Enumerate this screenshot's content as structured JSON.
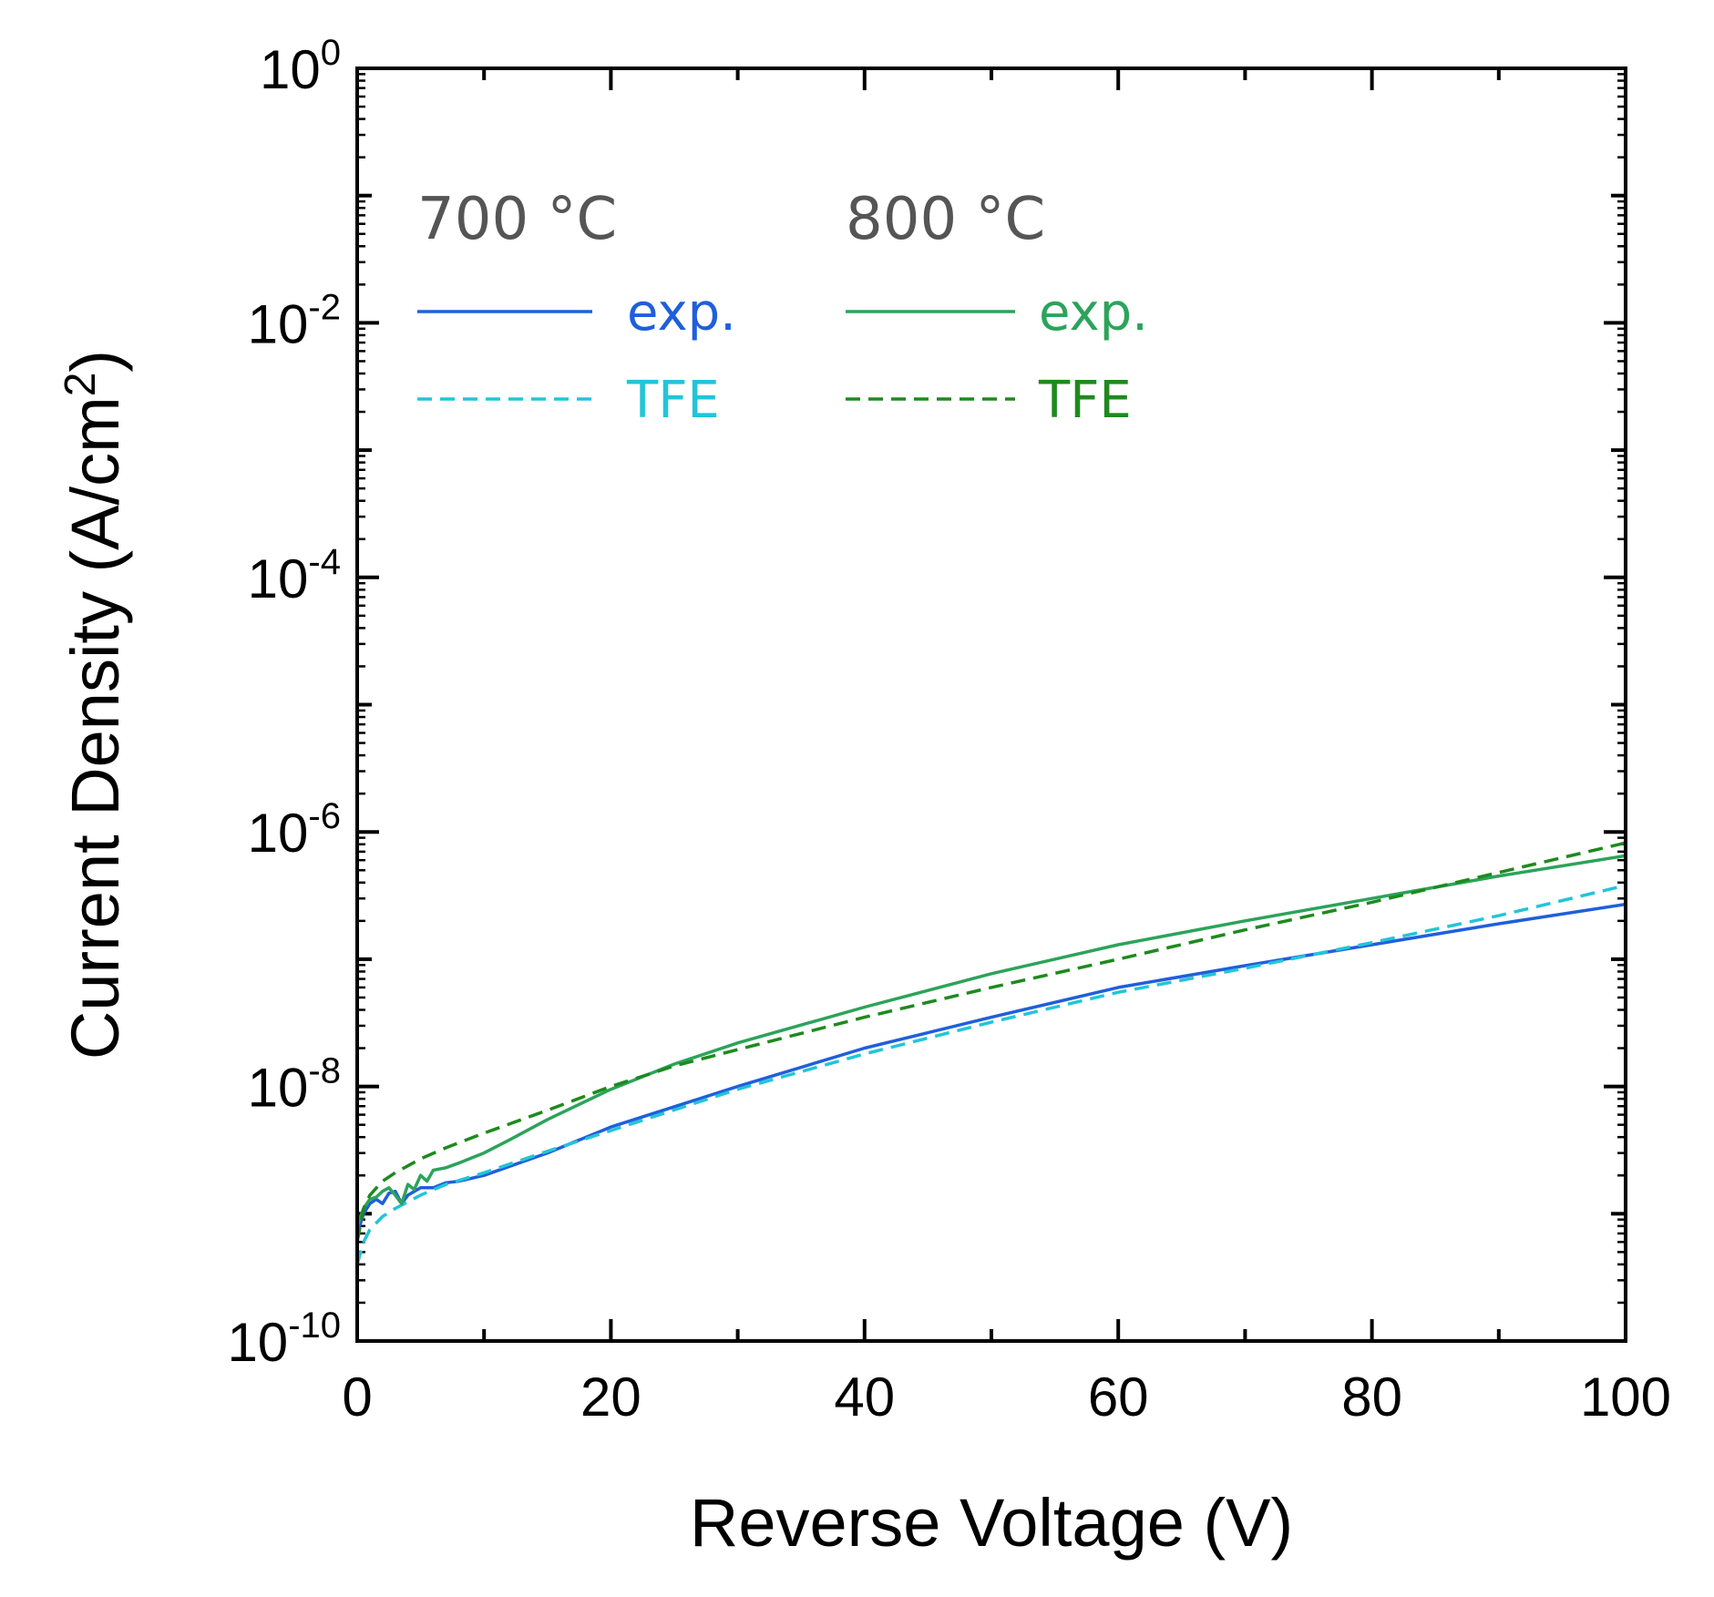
{
  "chart_data": {
    "type": "line",
    "title": "",
    "xlabel": "Reverse Voltage (V)",
    "ylabel": "Current Density (A/cm²)",
    "ylabel_parts": {
      "base": "Current Density (A/cm",
      "sup": "2",
      "tail": ")"
    },
    "xscale": "linear",
    "yscale": "log",
    "xlim": [
      0,
      100
    ],
    "ylim": [
      1e-10,
      1
    ],
    "xticks": [
      0,
      20,
      40,
      60,
      80,
      100
    ],
    "xtick_labels": [
      "0",
      "20",
      "40",
      "60",
      "80",
      "100"
    ],
    "yticks": [
      1e-10,
      1e-08,
      1e-06,
      0.0001,
      0.01,
      1
    ],
    "ytick_labels": [
      {
        "base": "10",
        "exp": "-10"
      },
      {
        "base": "10",
        "exp": "-8"
      },
      {
        "base": "10",
        "exp": "-6"
      },
      {
        "base": "10",
        "exp": "-4"
      },
      {
        "base": "10",
        "exp": "-2"
      },
      {
        "base": "10",
        "exp": "0"
      }
    ],
    "legend": {
      "position": "top-left",
      "groups": [
        {
          "heading": "700 °C",
          "entries": [
            {
              "label": "exp.",
              "series": "700 exp."
            },
            {
              "label": "TFE",
              "series": "700 TFE"
            }
          ]
        },
        {
          "heading": "800 °C",
          "entries": [
            {
              "label": "exp.",
              "series": "800 exp."
            },
            {
              "label": "TFE",
              "series": "800 TFE"
            }
          ]
        }
      ]
    },
    "series": [
      {
        "name": "700 exp.",
        "style": "solid",
        "color": "#1f5fdc",
        "x": [
          0,
          0.5,
          1,
          1.5,
          2,
          2.5,
          3,
          3.5,
          4,
          5,
          6,
          7,
          8,
          10,
          15,
          20,
          30,
          40,
          50,
          60,
          70,
          80,
          90,
          100
        ],
        "y": [
          7e-10,
          1e-09,
          1.2e-09,
          1.3e-09,
          1.2e-09,
          1.45e-09,
          1.5e-09,
          1.2e-09,
          1.4e-09,
          1.6e-09,
          1.6e-09,
          1.75e-09,
          1.8e-09,
          2e-09,
          3e-09,
          4.8e-09,
          1e-08,
          2e-08,
          3.5e-08,
          6e-08,
          8.9e-08,
          1.3e-07,
          1.9e-07,
          2.7e-07
        ]
      },
      {
        "name": "700 TFE",
        "style": "dashed",
        "color": "#22c5d8",
        "x": [
          0,
          0.5,
          1,
          2,
          3,
          5,
          7,
          10,
          15,
          20,
          30,
          40,
          50,
          60,
          70,
          80,
          90,
          100
        ],
        "y": [
          4e-10,
          6e-10,
          7.5e-10,
          9.5e-10,
          1.1e-09,
          1.4e-09,
          1.7e-09,
          2.1e-09,
          3.1e-09,
          4.5e-09,
          9.5e-09,
          1.8e-08,
          3.2e-08,
          5.5e-08,
          8.5e-08,
          1.35e-07,
          2.2e-07,
          3.8e-07
        ]
      },
      {
        "name": "800 exp.",
        "style": "solid",
        "color": "#2ca35a",
        "x": [
          0,
          0.5,
          1,
          1.5,
          2,
          2.5,
          3,
          3.5,
          4,
          4.5,
          5,
          5.5,
          6,
          7,
          8,
          10,
          12,
          15,
          20,
          25,
          30,
          40,
          50,
          60,
          70,
          80,
          90,
          100
        ],
        "y": [
          8e-10,
          1.1e-09,
          1.3e-09,
          1.35e-09,
          1.5e-09,
          1.6e-09,
          1.4e-09,
          1.2e-09,
          1.7e-09,
          1.55e-09,
          2e-09,
          1.8e-09,
          2.2e-09,
          2.3e-09,
          2.5e-09,
          3e-09,
          3.8e-09,
          5.5e-09,
          9.5e-09,
          1.5e-08,
          2.2e-08,
          4.2e-08,
          7.7e-08,
          1.3e-07,
          2e-07,
          3e-07,
          4.5e-07,
          6.5e-07
        ]
      },
      {
        "name": "800 TFE",
        "style": "dashed",
        "color": "#1e8a1e",
        "x": [
          0,
          0.5,
          1,
          2,
          3,
          5,
          7,
          10,
          15,
          20,
          25,
          30,
          40,
          50,
          60,
          70,
          80,
          90,
          100
        ],
        "y": [
          6e-10,
          1.1e-09,
          1.4e-09,
          1.8e-09,
          2.1e-09,
          2.7e-09,
          3.3e-09,
          4.3e-09,
          6.5e-09,
          1e-08,
          1.45e-08,
          1.95e-08,
          3.5e-08,
          6e-08,
          1e-07,
          1.7e-07,
          2.8e-07,
          4.8e-07,
          8.2e-07
        ]
      }
    ]
  }
}
